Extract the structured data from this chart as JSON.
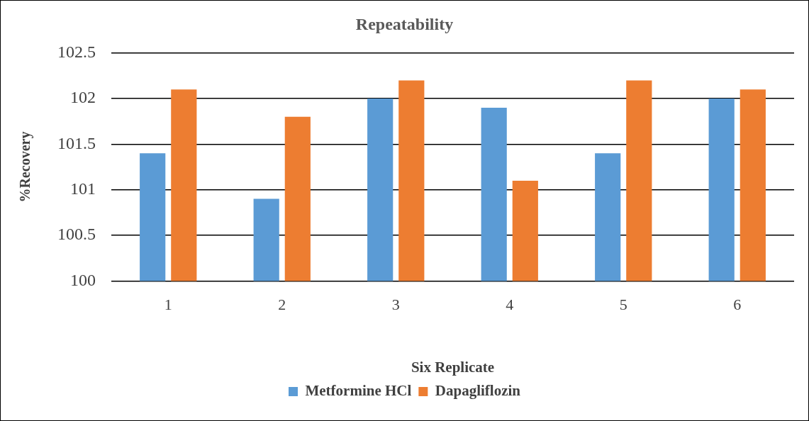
{
  "chart_data": {
    "type": "bar",
    "title": "Repeatability",
    "xlabel": "Six Replicate",
    "ylabel": "%Recovery",
    "categories": [
      "1",
      "2",
      "3",
      "4",
      "5",
      "6"
    ],
    "series": [
      {
        "name": "Metformine HCl",
        "color": "#5b9bd5",
        "values": [
          101.4,
          100.9,
          102.0,
          101.9,
          101.4,
          102.0
        ]
      },
      {
        "name": "Dapagliflozin",
        "color": "#ed7d31",
        "values": [
          102.1,
          101.8,
          102.2,
          101.1,
          102.2,
          102.1
        ]
      }
    ],
    "ylim": [
      100,
      102.5
    ],
    "yticks": [
      100,
      100.5,
      101,
      101.5,
      102,
      102.5
    ],
    "grid": "y",
    "legend": "bottom"
  }
}
